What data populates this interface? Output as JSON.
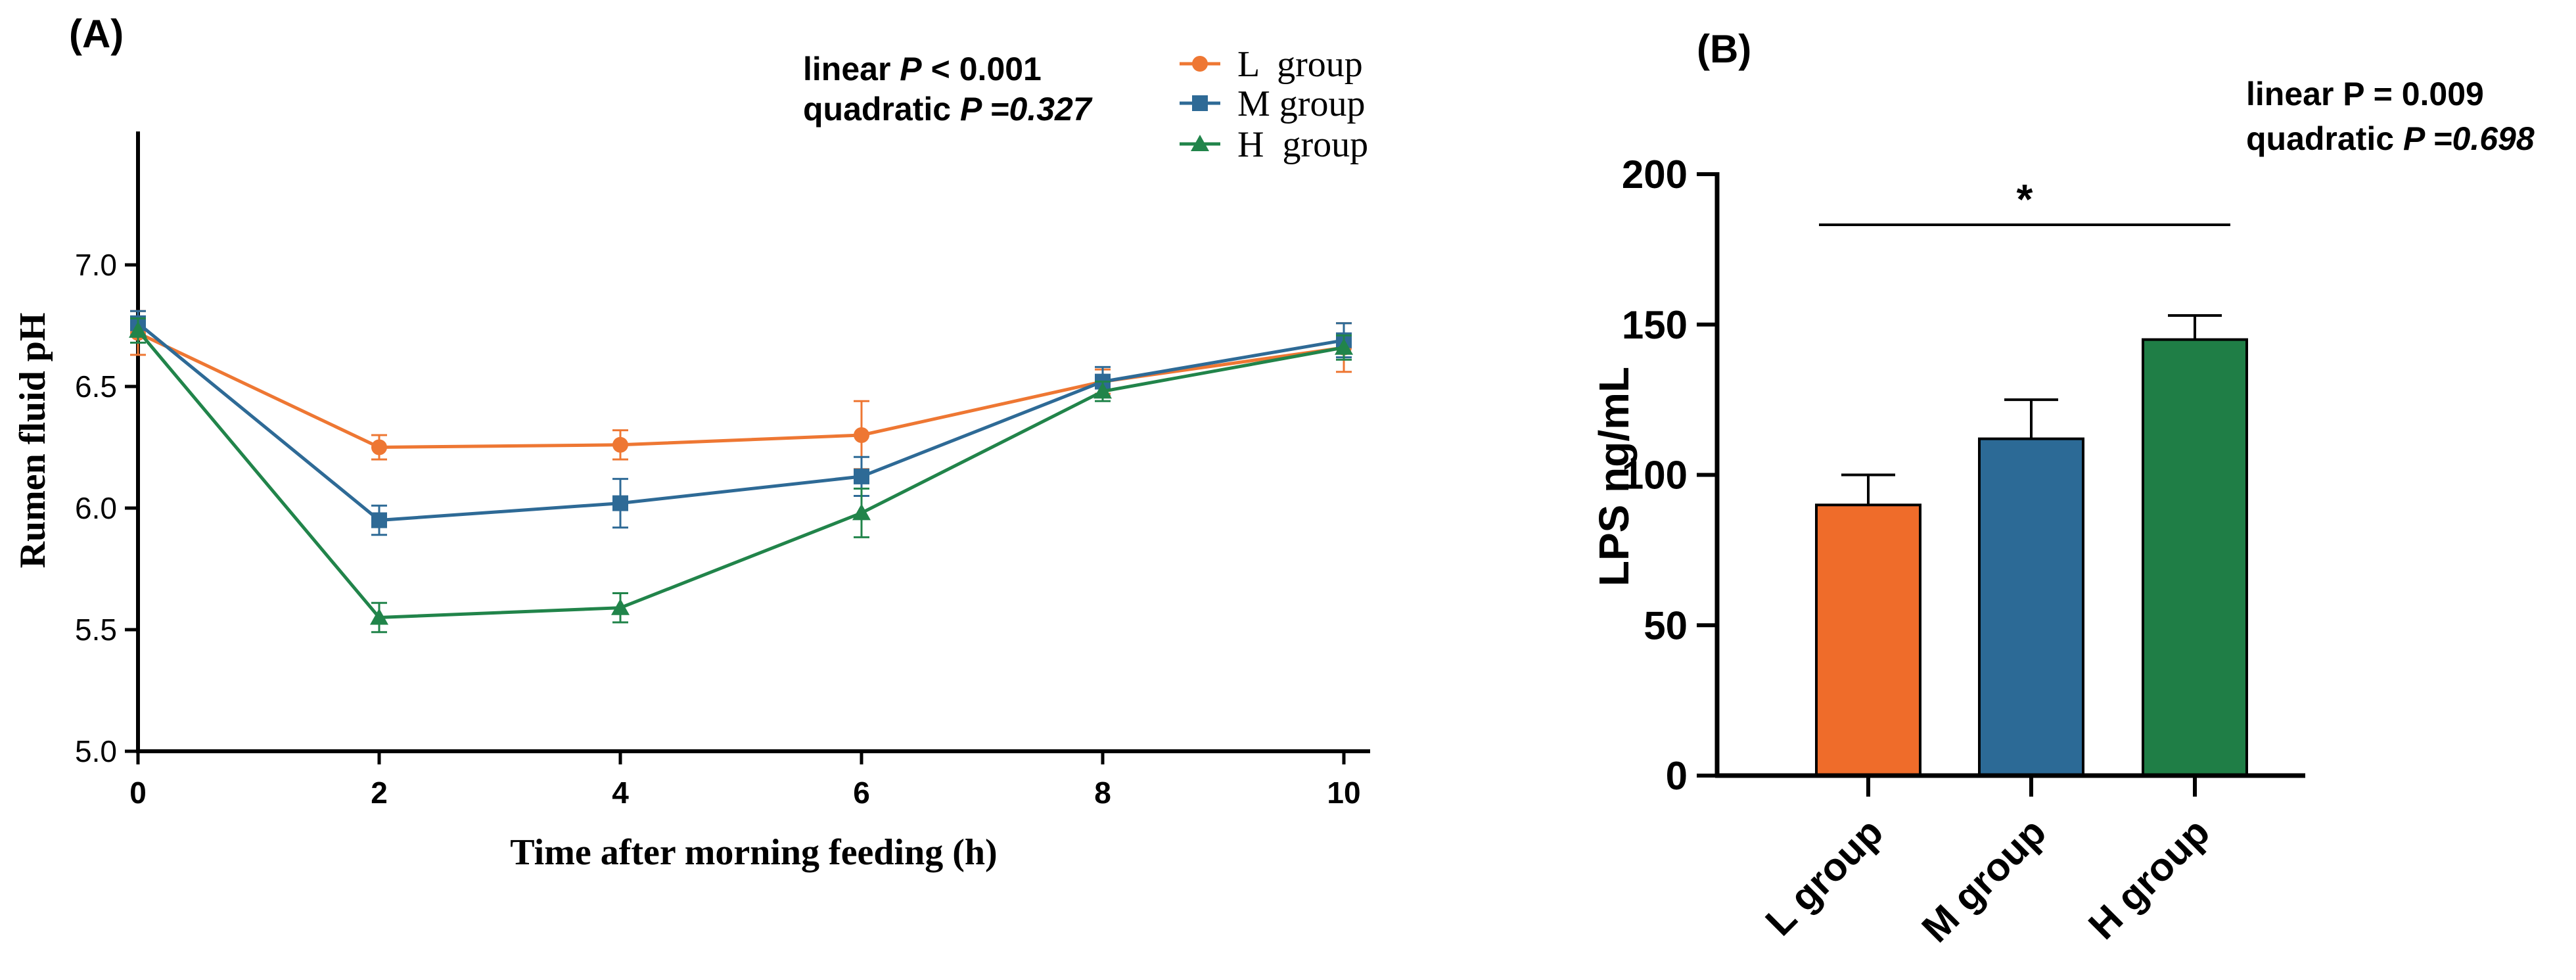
{
  "chart_data": [
    {
      "panel": "(A)",
      "type": "line",
      "xlabel": "Time after morning feeding (h)",
      "ylabel": "Rumen fluid pH",
      "xlim": [
        0,
        10
      ],
      "ylim": [
        5.0,
        7.5
      ],
      "xticks": [
        "0",
        "2",
        "4",
        "6",
        "8",
        "10"
      ],
      "yticks": [
        "5.0",
        "5.5",
        "6.0",
        "6.5",
        "7.0"
      ],
      "x": [
        0,
        2,
        4,
        6,
        8,
        10
      ],
      "stats": {
        "line1_prefix": "linear ",
        "line1_p": "P",
        "line1_value": "< 0.001",
        "line2_prefix": "quadratic ",
        "line2_value": "P =0.327"
      },
      "legend_position": "top-right",
      "series": [
        {
          "name": "L  group",
          "color": "#ee7733",
          "marker": "circle",
          "values": [
            6.72,
            6.25,
            6.26,
            6.3,
            6.52,
            6.66
          ],
          "errors": [
            0.09,
            0.05,
            0.06,
            0.14,
            0.05,
            0.1
          ]
        },
        {
          "name": "M group",
          "color": "#2e6a96",
          "marker": "square",
          "values": [
            6.76,
            5.95,
            6.02,
            6.13,
            6.52,
            6.69
          ],
          "errors": [
            0.05,
            0.06,
            0.1,
            0.08,
            0.06,
            0.07
          ]
        },
        {
          "name": "H  group",
          "color": "#21844a",
          "marker": "triangle",
          "values": [
            6.73,
            5.55,
            5.59,
            5.98,
            6.48,
            6.66
          ],
          "errors": [
            0.05,
            0.06,
            0.06,
            0.1,
            0.04,
            0.05
          ]
        }
      ]
    },
    {
      "panel": "(B)",
      "type": "bar",
      "ylabel": "LPS ng/mL",
      "ylim": [
        0,
        200
      ],
      "yticks": [
        "0",
        "50",
        "100",
        "150",
        "200"
      ],
      "categories": [
        "L group",
        "M group",
        "H group"
      ],
      "values": [
        90,
        112,
        145
      ],
      "errors": [
        10,
        13,
        8
      ],
      "colors": [
        "#ef6c2a",
        "#2c6a96",
        "#1f7e46"
      ],
      "significance": "*",
      "stats": {
        "line1_prefix": "linear ",
        "line1_value": "P = 0.009",
        "line2_prefix": "quadratic ",
        "line2_value": "P =0.698"
      }
    }
  ]
}
